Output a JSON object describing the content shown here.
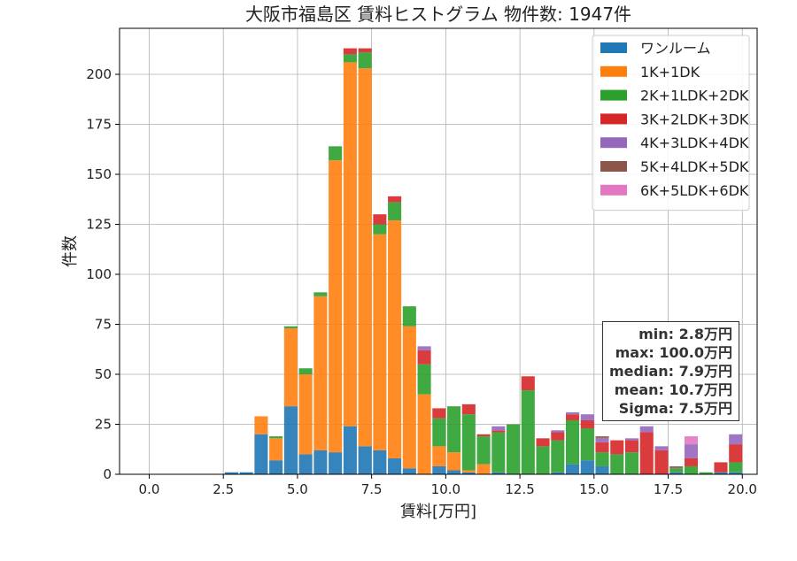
{
  "chart_data": {
    "type": "bar",
    "stacked": true,
    "title": "大阪市福島区 賃料ヒストグラム 物件数: 1947件",
    "xlabel": "賃料[万円]",
    "ylabel": "件数",
    "xlim": [
      -1.0,
      20.5
    ],
    "ylim": [
      0,
      223
    ],
    "xticks": [
      "0.0",
      "2.5",
      "5.0",
      "7.5",
      "10.0",
      "12.5",
      "15.0",
      "17.5",
      "20.0"
    ],
    "yticks": [
      "0",
      "25",
      "50",
      "75",
      "100",
      "125",
      "150",
      "175",
      "200"
    ],
    "grid": true,
    "legend_position": "top-right",
    "bin_width": 0.5,
    "x": [
      2.5,
      3.0,
      3.5,
      4.0,
      4.5,
      5.0,
      5.5,
      6.0,
      6.5,
      7.0,
      7.5,
      8.0,
      8.5,
      9.0,
      9.5,
      10.0,
      10.5,
      11.0,
      11.5,
      12.0,
      12.5,
      13.0,
      13.5,
      14.0,
      14.5,
      15.0,
      15.5,
      16.0,
      16.5,
      17.0,
      17.5,
      18.0,
      18.5,
      19.0,
      19.5
    ],
    "series": [
      {
        "name": "ワンルーム",
        "color": "#1f77b4",
        "values": [
          1,
          1,
          20,
          7,
          34,
          10,
          12,
          11,
          24,
          14,
          12,
          8,
          3,
          0,
          4,
          2,
          1,
          0,
          1,
          0,
          0,
          0,
          1,
          5,
          7,
          4,
          0,
          0,
          0,
          0,
          1,
          0,
          0,
          1,
          1
        ]
      },
      {
        "name": "1K+1DK",
        "color": "#ff7f0e",
        "values": [
          0,
          0,
          9,
          11,
          39,
          40,
          77,
          146,
          182,
          189,
          108,
          119,
          71,
          40,
          10,
          9,
          1,
          5,
          0,
          0,
          0,
          0,
          0,
          0,
          0,
          0,
          0,
          0,
          0,
          0,
          0,
          0,
          0,
          0,
          0
        ]
      },
      {
        "name": "2K+1LDK+2DK",
        "color": "#2ca02c",
        "values": [
          0,
          0,
          0,
          1,
          1,
          3,
          2,
          7,
          4,
          8,
          5,
          9,
          10,
          15,
          14,
          23,
          28,
          14,
          20,
          25,
          42,
          14,
          16,
          22,
          16,
          7,
          10,
          11,
          0,
          0,
          2,
          4,
          1,
          0,
          5
        ]
      },
      {
        "name": "3K+2LDK+3DK",
        "color": "#d62728",
        "values": [
          0,
          0,
          0,
          0,
          0,
          0,
          0,
          0,
          3,
          2,
          5,
          3,
          0,
          7,
          5,
          0,
          5,
          1,
          1,
          0,
          7,
          4,
          4,
          3,
          4,
          5,
          7,
          6,
          21,
          12,
          0,
          4,
          0,
          5,
          9
        ]
      },
      {
        "name": "4K+3LDK+4DK",
        "color": "#9467bd",
        "values": [
          0,
          0,
          0,
          0,
          0,
          0,
          0,
          0,
          0,
          0,
          0,
          0,
          0,
          2,
          0,
          0,
          0,
          0,
          2,
          0,
          0,
          0,
          1,
          1,
          3,
          2,
          0,
          1,
          3,
          2,
          0,
          7,
          0,
          0,
          5
        ]
      },
      {
        "name": "5K+4LDK+5DK",
        "color": "#8c564b",
        "values": [
          0,
          0,
          0,
          0,
          0,
          0,
          0,
          0,
          0,
          0,
          0,
          0,
          0,
          0,
          0,
          0,
          0,
          0,
          0,
          0,
          0,
          0,
          0,
          0,
          0,
          1,
          0,
          0,
          0,
          0,
          1,
          0,
          0,
          0,
          0
        ]
      },
      {
        "name": "6K+5LDK+6DK",
        "color": "#e377c2",
        "values": [
          0,
          0,
          0,
          0,
          0,
          0,
          0,
          0,
          0,
          0,
          0,
          0,
          0,
          0,
          0,
          0,
          0,
          0,
          0,
          0,
          0,
          0,
          0,
          0,
          0,
          0,
          0,
          0,
          0,
          0,
          0,
          4,
          0,
          0,
          0
        ]
      }
    ],
    "stats": [
      "min: 2.8万円",
      "max: 100.0万円",
      "median: 7.9万円",
      "mean: 10.7万円",
      "Sigma: 7.5万円"
    ]
  }
}
